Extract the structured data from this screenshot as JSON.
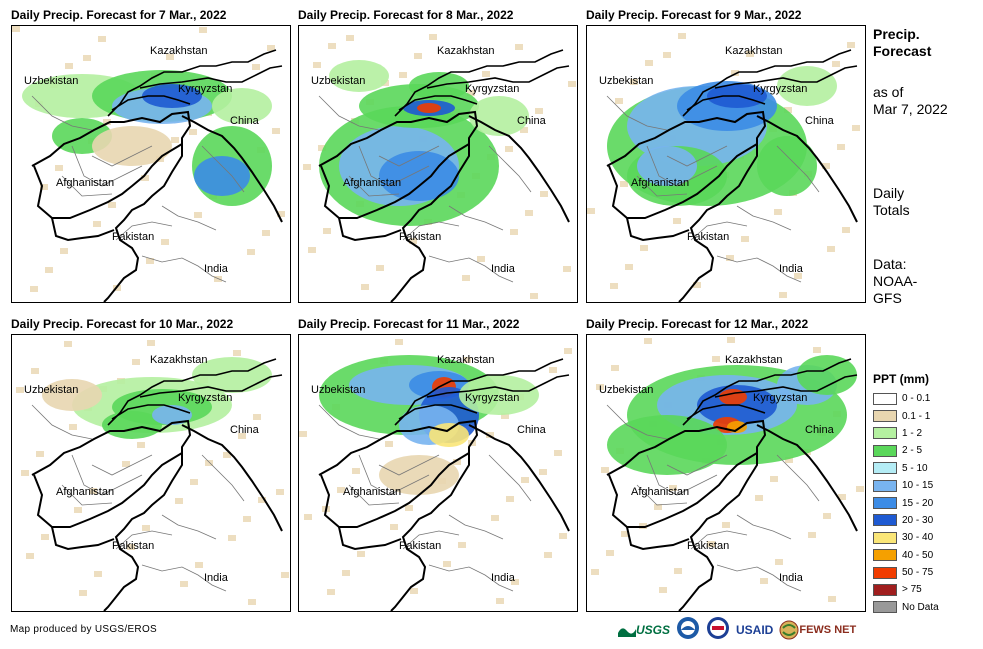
{
  "panels": [
    {
      "title": "Daily Precip. Forecast for 7 Mar., 2022"
    },
    {
      "title": "Daily Precip. Forecast for 8 Mar., 2022"
    },
    {
      "title": "Daily Precip. Forecast for 9 Mar., 2022"
    },
    {
      "title": "Daily Precip. Forecast for 10 Mar., 2022"
    },
    {
      "title": "Daily Precip. Forecast for 11 Mar., 2022"
    },
    {
      "title": "Daily Precip. Forecast for 12 Mar., 2022"
    }
  ],
  "map_labels": {
    "kazakhstan": "Kazakhstan",
    "uzbekistan": "Uzbekistan",
    "kyrgyzstan": "Kyrgyzstan",
    "china": "China",
    "afghanistan": "Afghanistan",
    "pakistan": "Pakistan",
    "india": "India"
  },
  "sidebar": {
    "title_line1": "Precip.",
    "title_line2": "Forecast",
    "asof_line1": "as of",
    "asof_line2": "Mar 7, 2022",
    "daily_line1": "Daily",
    "daily_line2": "Totals",
    "data_line1": "Data:",
    "data_line2": "NOAA-",
    "data_line3": "GFS"
  },
  "legend": {
    "title": "PPT (mm)",
    "items": [
      {
        "label": "0 - 0.1",
        "color": "#ffffff"
      },
      {
        "label": "0.1 - 1",
        "color": "#e8d6b0"
      },
      {
        "label": "1 - 2",
        "color": "#b4f0a0"
      },
      {
        "label": "2 - 5",
        "color": "#5ad75a"
      },
      {
        "label": "5 - 10",
        "color": "#b4ecf5"
      },
      {
        "label": "10 - 15",
        "color": "#78b4f0"
      },
      {
        "label": "15 - 20",
        "color": "#3c8ce6"
      },
      {
        "label": "20 - 30",
        "color": "#1e5ad2"
      },
      {
        "label": "30 - 40",
        "color": "#fae678"
      },
      {
        "label": "40 - 50",
        "color": "#f5a000"
      },
      {
        "label": "50 - 75",
        "color": "#f03c00"
      },
      {
        "label": "> 75",
        "color": "#a01e1e"
      },
      {
        "label": "No Data",
        "color": "#999999"
      }
    ]
  },
  "credit": "Map produced by USGS/EROS",
  "logos": {
    "usgs": "USGS",
    "usaid": "USAID",
    "fewsnet": "FEWS NET"
  }
}
